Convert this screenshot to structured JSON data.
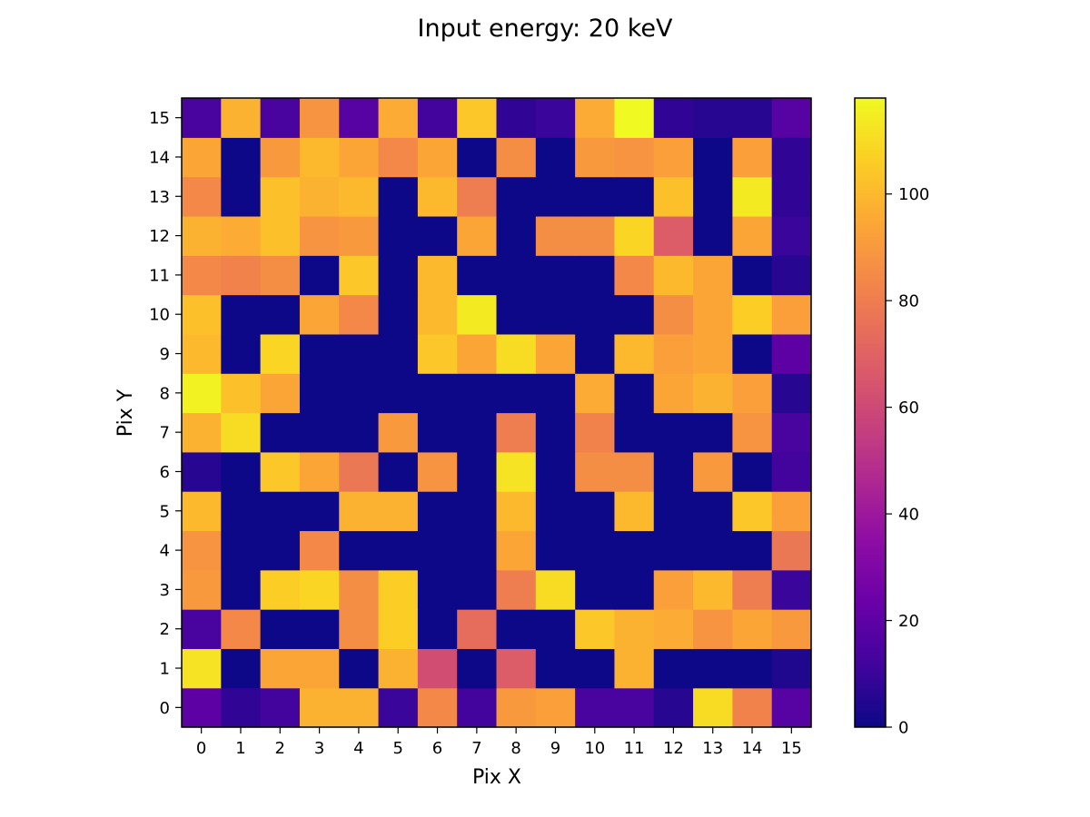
{
  "chart_data": {
    "type": "heatmap",
    "title": "Input energy:  20 keV",
    "xlabel": "Pix X",
    "ylabel": "Pix Y",
    "x_ticks": [
      "0",
      "1",
      "2",
      "3",
      "4",
      "5",
      "6",
      "7",
      "8",
      "9",
      "10",
      "11",
      "12",
      "13",
      "14",
      "15"
    ],
    "y_ticks": [
      "0",
      "1",
      "2",
      "3",
      "4",
      "5",
      "6",
      "7",
      "8",
      "9",
      "10",
      "11",
      "12",
      "13",
      "14",
      "15"
    ],
    "colormap": "plasma",
    "colorbar": {
      "range": [
        0,
        118
      ],
      "ticks": [
        0,
        20,
        40,
        60,
        80,
        100
      ],
      "tick_labels": [
        "0",
        "20",
        "40",
        "60",
        "80",
        "100"
      ]
    },
    "grid": false,
    "row_order": "rows listed from Pix Y = 0 to Pix Y = 15; columns from Pix X = 0 to Pix X = 15",
    "values": [
      [
        20,
        8,
        12,
        98,
        98,
        10,
        84,
        12,
        90,
        92,
        14,
        14,
        6,
        110,
        82,
        18
      ],
      [
        112,
        0,
        94,
        94,
        0,
        98,
        62,
        0,
        68,
        0,
        0,
        98,
        0,
        0,
        0,
        4
      ],
      [
        14,
        84,
        0,
        0,
        86,
        106,
        0,
        74,
        0,
        0,
        104,
        98,
        96,
        88,
        94,
        90
      ],
      [
        90,
        0,
        106,
        108,
        86,
        106,
        0,
        0,
        80,
        110,
        0,
        0,
        92,
        100,
        80,
        10
      ],
      [
        88,
        0,
        0,
        84,
        0,
        0,
        0,
        0,
        94,
        0,
        0,
        0,
        0,
        0,
        0,
        78
      ],
      [
        100,
        0,
        0,
        0,
        98,
        98,
        0,
        0,
        100,
        0,
        0,
        100,
        0,
        0,
        104,
        92
      ],
      [
        6,
        0,
        104,
        94,
        78,
        0,
        88,
        0,
        112,
        0,
        86,
        86,
        0,
        90,
        0,
        12
      ],
      [
        98,
        110,
        0,
        0,
        0,
        90,
        0,
        0,
        80,
        0,
        82,
        0,
        0,
        0,
        88,
        14
      ],
      [
        116,
        102,
        94,
        0,
        0,
        0,
        0,
        0,
        0,
        0,
        96,
        0,
        94,
        98,
        92,
        6
      ],
      [
        100,
        0,
        108,
        0,
        0,
        0,
        104,
        94,
        110,
        94,
        0,
        100,
        92,
        94,
        0,
        20
      ],
      [
        102,
        0,
        0,
        94,
        84,
        0,
        100,
        114,
        0,
        0,
        0,
        0,
        86,
        94,
        106,
        92
      ],
      [
        84,
        82,
        86,
        0,
        104,
        0,
        100,
        0,
        0,
        0,
        0,
        84,
        100,
        94,
        0,
        6
      ],
      [
        98,
        96,
        102,
        88,
        90,
        0,
        0,
        94,
        0,
        86,
        86,
        108,
        68,
        0,
        94,
        10
      ],
      [
        84,
        0,
        102,
        98,
        100,
        0,
        100,
        80,
        0,
        0,
        0,
        0,
        102,
        0,
        114,
        8
      ],
      [
        94,
        0,
        90,
        100,
        94,
        84,
        94,
        0,
        86,
        0,
        90,
        88,
        92,
        0,
        92,
        8
      ],
      [
        14,
        98,
        14,
        88,
        18,
        96,
        12,
        104,
        8,
        10,
        96,
        118,
        8,
        6,
        6,
        18
      ]
    ]
  }
}
